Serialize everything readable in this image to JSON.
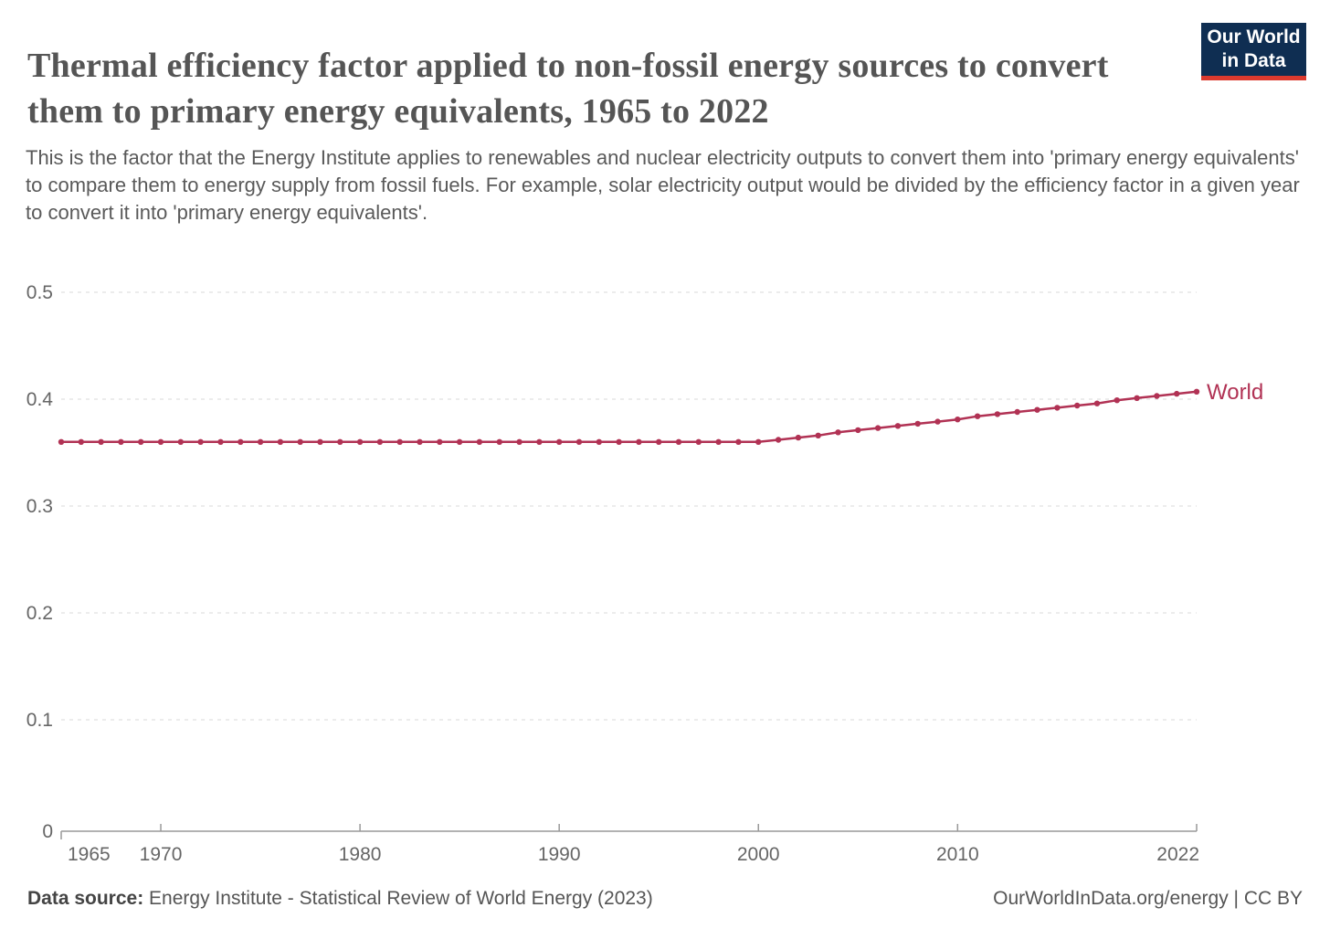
{
  "header": {
    "title": "Thermal efficiency factor applied to non-fossil energy sources to convert them to primary energy equivalents, 1965 to 2022",
    "subtitle": "This is the factor that the Energy Institute applies to renewables and nuclear electricity outputs to convert them into 'primary energy equivalents' to compare them to energy supply from fossil fuels. For example, solar electricity output would be divided by the efficiency factor in a given year to convert it into 'primary energy equivalents'."
  },
  "logo": {
    "line1": "Our World",
    "line2": "in Data",
    "bg_color": "#0F2E52",
    "accent_color": "#DC3A2E"
  },
  "footer": {
    "datasource_label": "Data source:",
    "datasource_text": " Energy Institute - Statistical Review of World Energy (2023)",
    "right_text": "OurWorldInData.org/energy | CC BY"
  },
  "chart_data": {
    "type": "line",
    "title": "Thermal efficiency factor applied to non-fossil energy sources to convert them to primary energy equivalents",
    "xlabel": "",
    "ylabel": "",
    "xlim": [
      1965,
      2022
    ],
    "ylim": [
      0,
      0.5
    ],
    "x_ticks": [
      1965,
      1970,
      1980,
      1990,
      2000,
      2010,
      2022
    ],
    "y_ticks": [
      0,
      0.1,
      0.2,
      0.3,
      0.4,
      0.5
    ],
    "grid": "horizontal-dashed",
    "grid_color": "#d9d9d9",
    "axis_color": "#999999",
    "legend": "end-of-line-label",
    "series": [
      {
        "name": "World",
        "color": "#B13254",
        "x": [
          1965,
          1966,
          1967,
          1968,
          1969,
          1970,
          1971,
          1972,
          1973,
          1974,
          1975,
          1976,
          1977,
          1978,
          1979,
          1980,
          1981,
          1982,
          1983,
          1984,
          1985,
          1986,
          1987,
          1988,
          1989,
          1990,
          1991,
          1992,
          1993,
          1994,
          1995,
          1996,
          1997,
          1998,
          1999,
          2000,
          2001,
          2002,
          2003,
          2004,
          2005,
          2006,
          2007,
          2008,
          2009,
          2010,
          2011,
          2012,
          2013,
          2014,
          2015,
          2016,
          2017,
          2018,
          2019,
          2020,
          2021,
          2022
        ],
        "values": [
          0.36,
          0.36,
          0.36,
          0.36,
          0.36,
          0.36,
          0.36,
          0.36,
          0.36,
          0.36,
          0.36,
          0.36,
          0.36,
          0.36,
          0.36,
          0.36,
          0.36,
          0.36,
          0.36,
          0.36,
          0.36,
          0.36,
          0.36,
          0.36,
          0.36,
          0.36,
          0.36,
          0.36,
          0.36,
          0.36,
          0.36,
          0.36,
          0.36,
          0.36,
          0.36,
          0.36,
          0.362,
          0.364,
          0.366,
          0.369,
          0.371,
          0.373,
          0.375,
          0.377,
          0.379,
          0.381,
          0.384,
          0.386,
          0.388,
          0.39,
          0.392,
          0.394,
          0.396,
          0.399,
          0.401,
          0.403,
          0.405,
          0.407
        ]
      }
    ]
  }
}
